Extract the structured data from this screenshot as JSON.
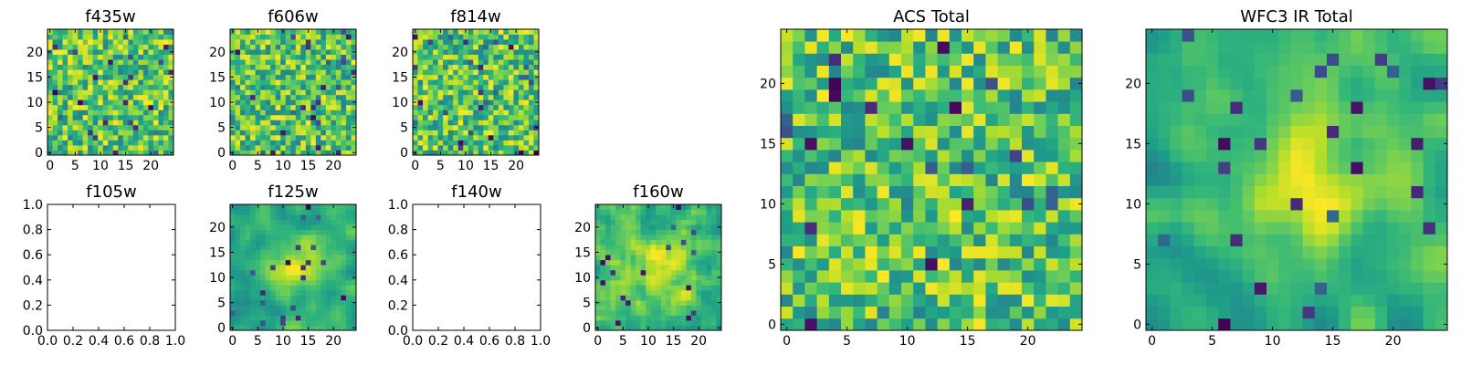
{
  "figure": {
    "colormap": "viridis",
    "frame_color": "#000000",
    "background": "#ffffff"
  },
  "chart_data": [
    {
      "type": "heatmap",
      "title": "f435w",
      "grid_size": 25,
      "seed": 11,
      "smoothness": 0,
      "xticks": [
        "0",
        "5",
        "10",
        "15",
        "20"
      ],
      "yticks": [
        "0",
        "5",
        "10",
        "15",
        "20"
      ],
      "xlim": [
        -0.5,
        24.5
      ],
      "ylim": [
        -0.5,
        24.5
      ]
    },
    {
      "type": "heatmap",
      "title": "f606w",
      "grid_size": 25,
      "seed": 23,
      "smoothness": 0,
      "xticks": [
        "0",
        "5",
        "10",
        "15",
        "20"
      ],
      "yticks": [
        "0",
        "5",
        "10",
        "15",
        "20"
      ],
      "xlim": [
        -0.5,
        24.5
      ],
      "ylim": [
        -0.5,
        24.5
      ]
    },
    {
      "type": "heatmap",
      "title": "f814w",
      "grid_size": 25,
      "seed": 37,
      "smoothness": 0,
      "xticks": [
        "0",
        "5",
        "10",
        "15",
        "20"
      ],
      "yticks": [
        "0",
        "5",
        "10",
        "15",
        "20"
      ],
      "xlim": [
        -0.5,
        24.5
      ],
      "ylim": [
        -0.5,
        24.5
      ]
    },
    {
      "type": "empty",
      "title": "f105w",
      "xticks": [
        "0.0",
        "0.2",
        "0.4",
        "0.6",
        "0.8",
        "1.0"
      ],
      "yticks": [
        "0.0",
        "0.2",
        "0.4",
        "0.6",
        "0.8",
        "1.0"
      ],
      "xlim": [
        0,
        1
      ],
      "ylim": [
        0,
        1
      ]
    },
    {
      "type": "heatmap",
      "title": "f125w",
      "grid_size": 25,
      "seed": 41,
      "smoothness": 2,
      "xticks": [
        "0",
        "5",
        "10",
        "15",
        "20"
      ],
      "yticks": [
        "0",
        "5",
        "10",
        "15",
        "20"
      ],
      "xlim": [
        -0.5,
        24.5
      ],
      "ylim": [
        -0.5,
        24.5
      ]
    },
    {
      "type": "empty",
      "title": "f140w",
      "xticks": [
        "0.0",
        "0.2",
        "0.4",
        "0.6",
        "0.8",
        "1.0"
      ],
      "yticks": [
        "0.0",
        "0.2",
        "0.4",
        "0.6",
        "0.8",
        "1.0"
      ],
      "xlim": [
        0,
        1
      ],
      "ylim": [
        0,
        1
      ]
    },
    {
      "type": "heatmap",
      "title": "f160w",
      "grid_size": 25,
      "seed": 53,
      "smoothness": 1,
      "xticks": [
        "0",
        "5",
        "10",
        "15",
        "20"
      ],
      "yticks": [
        "0",
        "5",
        "10",
        "15",
        "20"
      ],
      "xlim": [
        -0.5,
        24.5
      ],
      "ylim": [
        -0.5,
        24.5
      ]
    },
    {
      "type": "heatmap",
      "title": "ACS Total",
      "grid_size": 25,
      "seed": 67,
      "smoothness": 0,
      "xticks": [
        "0",
        "5",
        "10",
        "15",
        "20"
      ],
      "yticks": [
        "0",
        "5",
        "10",
        "15",
        "20"
      ],
      "xlim": [
        -0.5,
        24.5
      ],
      "ylim": [
        -0.5,
        24.5
      ]
    },
    {
      "type": "heatmap",
      "title": "WFC3 IR Total",
      "grid_size": 25,
      "seed": 79,
      "smoothness": 2,
      "xticks": [
        "0",
        "5",
        "10",
        "15",
        "20"
      ],
      "yticks": [
        "0",
        "5",
        "10",
        "15",
        "20"
      ],
      "xlim": [
        -0.5,
        24.5
      ],
      "ylim": [
        -0.5,
        24.5
      ]
    }
  ]
}
